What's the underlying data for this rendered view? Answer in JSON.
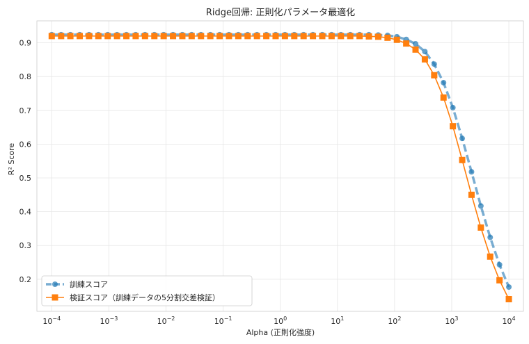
{
  "chart_data": {
    "type": "line",
    "title": "Ridge回帰: 正則化パラメータ最適化",
    "xlabel": "Alpha (正則化強度)",
    "ylabel": "R² Score",
    "xscale": "log",
    "xlim": [
      5.5e-05,
      18000
    ],
    "ylim": [
      0.105,
      0.965
    ],
    "grid": true,
    "legend_position": "lower-left",
    "x_ticks": [
      {
        "value": 0.0001,
        "base": "10",
        "exp": "−4"
      },
      {
        "value": 0.001,
        "base": "10",
        "exp": "−3"
      },
      {
        "value": 0.01,
        "base": "10",
        "exp": "−2"
      },
      {
        "value": 0.1,
        "base": "10",
        "exp": "−1"
      },
      {
        "value": 1,
        "base": "10",
        "exp": "0"
      },
      {
        "value": 10,
        "base": "10",
        "exp": "1"
      },
      {
        "value": 100,
        "base": "10",
        "exp": "2"
      },
      {
        "value": 1000,
        "base": "10",
        "exp": "3"
      },
      {
        "value": 10000,
        "base": "10",
        "exp": "4"
      }
    ],
    "y_ticks": [
      {
        "value": 0.2,
        "label": "0.2"
      },
      {
        "value": 0.3,
        "label": "0.3"
      },
      {
        "value": 0.4,
        "label": "0.4"
      },
      {
        "value": 0.5,
        "label": "0.5"
      },
      {
        "value": 0.6,
        "label": "0.6"
      },
      {
        "value": 0.7,
        "label": "0.7"
      },
      {
        "value": 0.8,
        "label": "0.8"
      },
      {
        "value": 0.9,
        "label": "0.9"
      }
    ],
    "x": [
      0.0001,
      0.000146,
      0.000212,
      0.000309,
      0.00045,
      0.000655,
      0.000954,
      0.001389,
      0.002024,
      0.002947,
      0.004292,
      0.006251,
      0.009103,
      0.013257,
      0.019307,
      0.028118,
      0.040949,
      0.059636,
      0.086851,
      0.126486,
      0.184207,
      0.26827,
      0.390694,
      0.568987,
      0.828643,
      1.206793,
      1.757511,
      2.559548,
      3.727594,
      5.428675,
      7.906043,
      11.513954,
      16.768329,
      24.420531,
      35.564803,
      51.794747,
      75.431201,
      109.854114,
      159.985872,
      232.995181,
      339.322177,
      494.171336,
      719.685673,
      1048.113134,
      1526.417967,
      2222.996483,
      3237.457543,
      4714.866363,
      6866.48845,
      10000
    ],
    "series": [
      {
        "name": "訓練スコア",
        "color": "#1f77b4",
        "style": "dashed",
        "marker": "circle",
        "values": [
          0.924,
          0.924,
          0.924,
          0.924,
          0.924,
          0.924,
          0.924,
          0.924,
          0.924,
          0.924,
          0.924,
          0.924,
          0.924,
          0.924,
          0.924,
          0.924,
          0.924,
          0.924,
          0.924,
          0.924,
          0.924,
          0.924,
          0.924,
          0.924,
          0.924,
          0.924,
          0.924,
          0.924,
          0.924,
          0.924,
          0.924,
          0.924,
          0.924,
          0.924,
          0.924,
          0.923,
          0.922,
          0.918,
          0.91,
          0.897,
          0.874,
          0.837,
          0.782,
          0.708,
          0.617,
          0.518,
          0.417,
          0.324,
          0.243,
          0.177
        ]
      },
      {
        "name": "検証スコア（訓練データの5分割交差検証）",
        "color": "#ff7f0e",
        "style": "solid",
        "marker": "square",
        "values": [
          0.92,
          0.92,
          0.92,
          0.92,
          0.92,
          0.92,
          0.92,
          0.92,
          0.92,
          0.92,
          0.92,
          0.92,
          0.92,
          0.92,
          0.92,
          0.92,
          0.92,
          0.92,
          0.92,
          0.92,
          0.92,
          0.92,
          0.92,
          0.92,
          0.92,
          0.92,
          0.92,
          0.92,
          0.92,
          0.92,
          0.92,
          0.92,
          0.92,
          0.92,
          0.919,
          0.918,
          0.915,
          0.909,
          0.898,
          0.88,
          0.851,
          0.804,
          0.738,
          0.653,
          0.553,
          0.45,
          0.353,
          0.267,
          0.197,
          0.141
        ]
      }
    ]
  }
}
